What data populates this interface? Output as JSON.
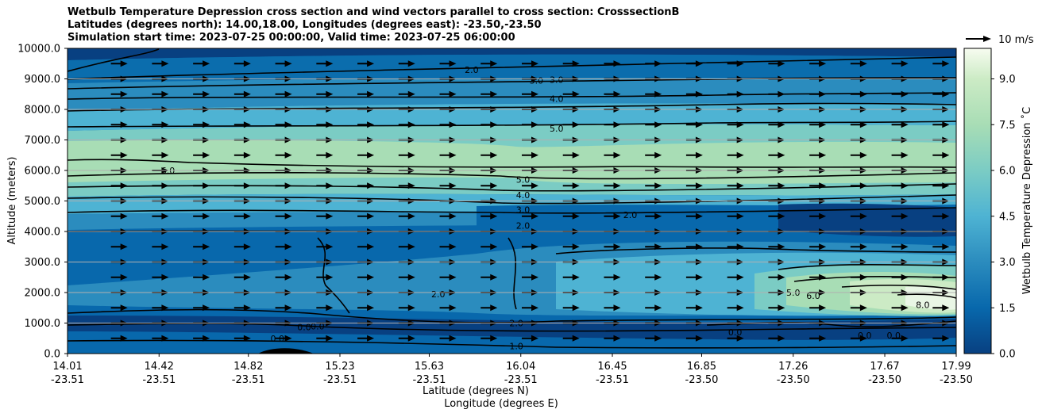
{
  "chart_data": {
    "type": "contour",
    "title_lines": [
      "Wetbulb Temperature Depression cross section and wind vectors parallel to cross section: CrosssectionB",
      "Latitudes (degrees north): 14.00,18.00, Longitudes (degrees east): -23.50,-23.50",
      "Simulation start time: 2023-07-25 00:00:00, Valid time: 2023-07-25 06:00:00"
    ],
    "ylabel": "Altitude (meters)",
    "xlabel_lat": "Latitude (degrees N)",
    "xlabel_lon": "Longitude (degrees E)",
    "ylim": [
      0,
      10000
    ],
    "y_ticks": [
      "0.0",
      "1000.0",
      "2000.0",
      "3000.0",
      "4000.0",
      "5000.0",
      "6000.0",
      "7000.0",
      "8000.0",
      "9000.0",
      "10000.0"
    ],
    "x_ticks": [
      {
        "lat": "14.01",
        "lon": "-23.51"
      },
      {
        "lat": "14.42",
        "lon": "-23.51"
      },
      {
        "lat": "14.82",
        "lon": "-23.51"
      },
      {
        "lat": "15.23",
        "lon": "-23.51"
      },
      {
        "lat": "15.63",
        "lon": "-23.51"
      },
      {
        "lat": "16.04",
        "lon": "-23.51"
      },
      {
        "lat": "16.45",
        "lon": "-23.51"
      },
      {
        "lat": "16.85",
        "lon": "-23.50"
      },
      {
        "lat": "17.26",
        "lon": "-23.50"
      },
      {
        "lat": "17.67",
        "lon": "-23.50"
      },
      {
        "lat": "17.99",
        "lon": "-23.50"
      }
    ],
    "x_range": [
      14.01,
      17.99
    ],
    "wind_reference": "10 m/s",
    "colorbar": {
      "label": "Wetbulb Temperature Depression ˚C",
      "range": [
        0.0,
        10.0
      ],
      "ticks": [
        "0.0",
        "1.5",
        "3.0",
        "4.5",
        "6.0",
        "7.5",
        "9.0"
      ],
      "tick_values": [
        0.0,
        1.5,
        3.0,
        4.5,
        6.0,
        7.5,
        9.0
      ]
    },
    "contour_levels": [
      1.0,
      2.0,
      3.0,
      4.0,
      5.0,
      6.0
    ],
    "contour_labels": [
      {
        "text": "2.0",
        "lat": 15.82,
        "alt": 9300
      },
      {
        "text": "3.0",
        "lat": 16.11,
        "alt": 8950
      },
      {
        "text": "3.0",
        "lat": 16.2,
        "alt": 8980
      },
      {
        "text": "4.0",
        "lat": 16.2,
        "alt": 8350
      },
      {
        "text": "5.0",
        "lat": 16.2,
        "alt": 7380
      },
      {
        "text": "6.0",
        "lat": 14.46,
        "alt": 6000
      },
      {
        "text": "5.0",
        "lat": 16.05,
        "alt": 5700
      },
      {
        "text": "4.0",
        "lat": 16.05,
        "alt": 5200
      },
      {
        "text": "3.0",
        "lat": 16.05,
        "alt": 4720
      },
      {
        "text": "2.0",
        "lat": 16.05,
        "alt": 4200
      },
      {
        "text": "2.0",
        "lat": 16.53,
        "alt": 4550
      },
      {
        "text": "2.0",
        "lat": 15.67,
        "alt": 1950
      },
      {
        "text": "2.0",
        "lat": 16.02,
        "alt": 1000
      },
      {
        "text": "1.0",
        "lat": 16.02,
        "alt": 250
      },
      {
        "text": "0.0",
        "lat": 15.07,
        "alt": 870
      },
      {
        "text": "0.0",
        "lat": 15.13,
        "alt": 900
      },
      {
        "text": "0.0",
        "lat": 14.95,
        "alt": 500
      },
      {
        "text": "0.0",
        "lat": 17.0,
        "alt": 700
      },
      {
        "text": "0.0",
        "lat": 17.58,
        "alt": 600
      },
      {
        "text": "0.0",
        "lat": 17.71,
        "alt": 600
      },
      {
        "text": "5.0",
        "lat": 17.26,
        "alt": 2000
      },
      {
        "text": "6.0",
        "lat": 17.35,
        "alt": 1900
      },
      {
        "text": "8.0",
        "lat": 17.84,
        "alt": 1600
      }
    ],
    "vector_direction": "parallel to cross section (pointing north)"
  }
}
